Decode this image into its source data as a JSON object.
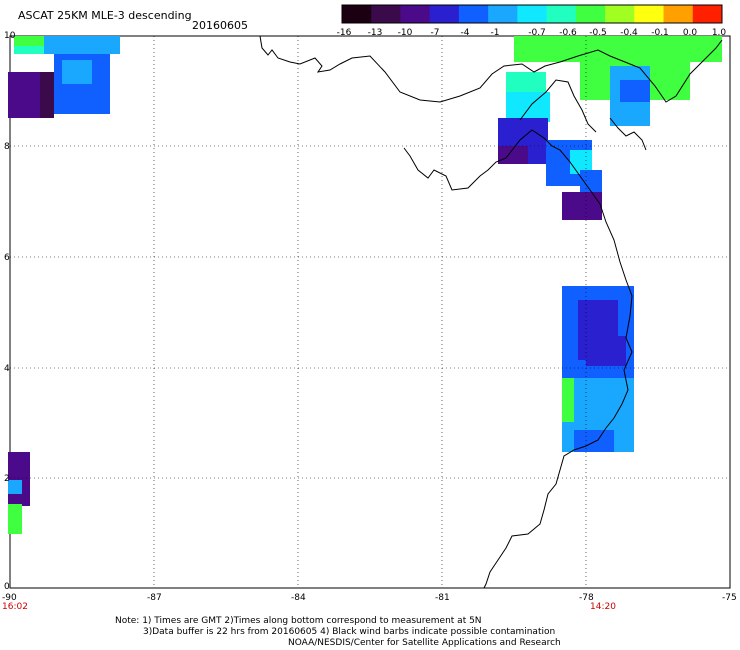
{
  "header": {
    "title": "ASCAT 25KM MLE-3 descending",
    "date": "20160605"
  },
  "colorbar": {
    "ticks": [
      "-16",
      "-13",
      "-10",
      "-7",
      "-4",
      "-1",
      "-0.7",
      "-0.6",
      "-0.5",
      "-0.4",
      "-0.1",
      "0.0",
      "1.0"
    ],
    "colors": [
      "#1a0010",
      "#3b0a4a",
      "#4b0a8a",
      "#2a20d0",
      "#1060ff",
      "#1aa8ff",
      "#10e8ff",
      "#20ffc0",
      "#40ff40",
      "#a0ff20",
      "#ffff10",
      "#ffa000",
      "#ff2000"
    ]
  },
  "axes": {
    "lat_labels": [
      "10",
      "8",
      "6",
      "4",
      "2",
      "0"
    ],
    "lon_labels": [
      "-90",
      "-87",
      "-84",
      "-81",
      "-78",
      "-75"
    ],
    "time_labels": [
      "16:02",
      "14:20"
    ]
  },
  "notes": {
    "line1": "Note: 1) Times are GMT 2)Times along bottom correspond to measurement at 5N",
    "line2": "3)Data buffer is 22 hrs from 20160605 4) Black wind barbs indicate possible contamination",
    "line3": "NOAA/NESDIS/Center for Satellite Applications and Research"
  }
}
